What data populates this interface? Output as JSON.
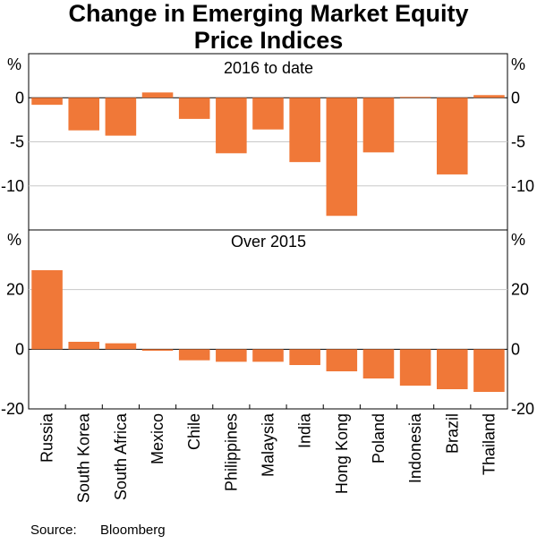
{
  "title_line1": "Change in Emerging Market Equity",
  "title_line2": "Price Indices",
  "source_label": "Source:",
  "source_value": "Bloomberg",
  "colors": {
    "bar": "#f07838",
    "grid": "#c8c8c8",
    "axis": "#000000"
  },
  "chart_data": [
    {
      "type": "bar",
      "title": "2016 to date",
      "unit_left": "%",
      "unit_right": "%",
      "ylim": [
        -15,
        5
      ],
      "ticks": [
        0,
        -5,
        -10
      ],
      "tick_labels": [
        "0",
        "-5",
        "-10"
      ],
      "categories": [
        "Russia",
        "South Korea",
        "South Africa",
        "Mexico",
        "Chile",
        "Philippines",
        "Malaysia",
        "India",
        "Hong Kong",
        "Poland",
        "Indonesia",
        "Brazil",
        "Thailand"
      ],
      "values": [
        -0.8,
        -3.7,
        -4.3,
        0.6,
        -2.4,
        -6.3,
        -3.6,
        -7.3,
        -13.4,
        -6.2,
        0.1,
        -8.7,
        0.3
      ]
    },
    {
      "type": "bar",
      "title": "Over 2015",
      "unit_left": "%",
      "unit_right": "%",
      "ylim": [
        -20,
        40
      ],
      "ticks": [
        20,
        0,
        -20
      ],
      "tick_labels": [
        "20",
        "0",
        "-20"
      ],
      "categories": [
        "Russia",
        "South Korea",
        "South Africa",
        "Mexico",
        "Chile",
        "Philippines",
        "Malaysia",
        "India",
        "Hong Kong",
        "Poland",
        "Indonesia",
        "Brazil",
        "Thailand"
      ],
      "values": [
        26.5,
        2.5,
        2.0,
        -0.5,
        -3.7,
        -4.2,
        -4.2,
        -5.3,
        -7.4,
        -9.8,
        -12.2,
        -13.4,
        -14.3
      ]
    }
  ]
}
